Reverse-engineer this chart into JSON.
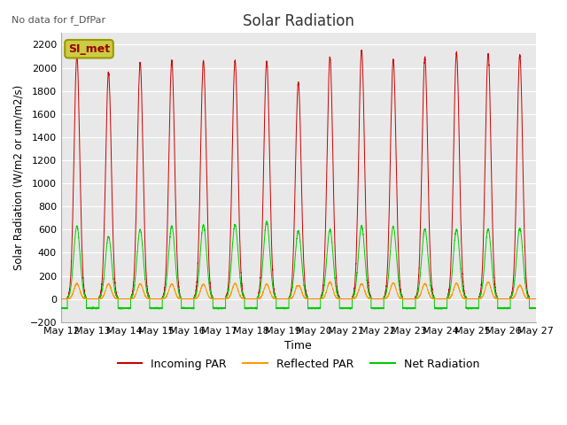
{
  "title": "Solar Radiation",
  "subtitle": "No data for f_DfPar",
  "ylabel": "Solar Radiation (W/m2 or um/m2/s)",
  "xlabel": "Time",
  "ylim": [
    -200,
    2300
  ],
  "yticks": [
    -200,
    0,
    200,
    400,
    600,
    800,
    1000,
    1200,
    1400,
    1600,
    1800,
    2000,
    2200
  ],
  "legend_label1": "Incoming PAR",
  "legend_label2": "Reflected PAR",
  "legend_label3": "Net Radiation",
  "color_incoming": "#cc0000",
  "color_reflected": "#ff9900",
  "color_net": "#00cc00",
  "legend_box_label": "SI_met",
  "legend_box_facecolor": "#cccc44",
  "legend_box_edgecolor": "#999900",
  "background_color": "#e8e8e8",
  "num_days": 15,
  "start_day": 12,
  "end_day": 27,
  "incoming_peaks": [
    2100,
    1960,
    2040,
    2060,
    2060,
    2060,
    2060,
    1870,
    2090,
    2150,
    2070,
    2090,
    2130,
    2120,
    2110
  ],
  "net_peaks": [
    630,
    540,
    600,
    630,
    640,
    640,
    670,
    590,
    600,
    630,
    625,
    605,
    600,
    605,
    610
  ],
  "reflected_ratio": 0.06,
  "cloudy_day_idx": 7,
  "cloudy_peak": 1870,
  "night_neg": -80
}
